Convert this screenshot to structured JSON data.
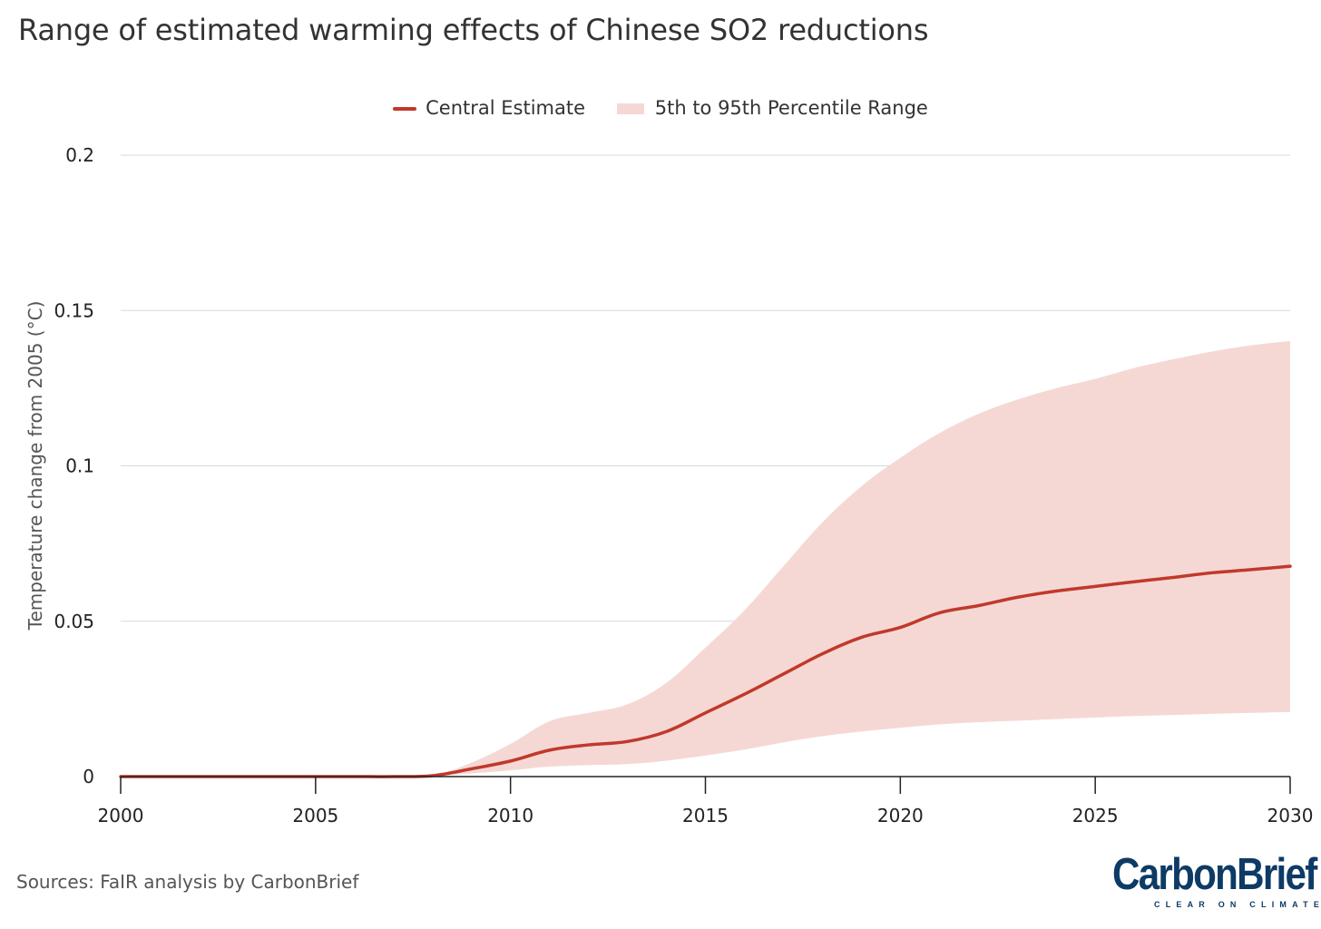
{
  "title": "Range of estimated warming effects of Chinese SO2 reductions",
  "legend": {
    "central": "Central Estimate",
    "range": "5th to 95th Percentile Range"
  },
  "source": "Sources: FaIR analysis by CarbonBrief",
  "logo": {
    "main": "CarbonBrief",
    "tagline": "CLEAR ON CLIMATE"
  },
  "colors": {
    "line": "#c0392b",
    "band": "#f5d8d4",
    "grid": "#d9d9d9",
    "axis": "#222222",
    "logo": "#0d3b66"
  },
  "chart_data": {
    "type": "area",
    "title": "Range of estimated warming effects of Chinese SO2 reductions",
    "xlabel": "",
    "ylabel": "Temperature change from 2005 (°C)",
    "xlim": [
      2000,
      2030
    ],
    "ylim": [
      0,
      0.2
    ],
    "x_ticks": [
      2000,
      2005,
      2010,
      2015,
      2020,
      2025,
      2030
    ],
    "x_tick_labels": [
      "2000",
      "2005",
      "2010",
      "2015",
      "2020",
      "2025",
      "2030"
    ],
    "y_ticks": [
      0,
      0.05,
      0.1,
      0.15,
      0.2
    ],
    "y_tick_labels": [
      "0",
      "0.05",
      "0.1",
      "0.15",
      "0.2"
    ],
    "grid": "horizontal",
    "legend_position": "top-center",
    "x": [
      2000,
      2001,
      2002,
      2003,
      2004,
      2005,
      2006,
      2007,
      2008,
      2009,
      2010,
      2011,
      2012,
      2013,
      2014,
      2015,
      2016,
      2017,
      2018,
      2019,
      2020,
      2021,
      2022,
      2023,
      2024,
      2025,
      2026,
      2027,
      2028,
      2029,
      2030
    ],
    "series": [
      {
        "name": "Central Estimate",
        "type": "line",
        "values": [
          0,
          0,
          0,
          0,
          0,
          0,
          0,
          0,
          0.0003,
          0.0025,
          0.005,
          0.0085,
          0.0102,
          0.0113,
          0.0145,
          0.0205,
          0.0265,
          0.033,
          0.0395,
          0.0448,
          0.048,
          0.0527,
          0.055,
          0.0577,
          0.0597,
          0.0612,
          0.0627,
          0.0641,
          0.0656,
          0.0666,
          0.0677
        ]
      },
      {
        "name": "5th to 95th Percentile Range",
        "type": "band",
        "lower": [
          0,
          0,
          0,
          0,
          0,
          0,
          0,
          0,
          0.0002,
          0.001,
          0.002,
          0.0032,
          0.0037,
          0.004,
          0.0051,
          0.0068,
          0.0087,
          0.011,
          0.013,
          0.0145,
          0.0157,
          0.0168,
          0.0175,
          0.018,
          0.0185,
          0.019,
          0.0195,
          0.0198,
          0.0202,
          0.0205,
          0.0208
        ],
        "upper": [
          0,
          0,
          0,
          0,
          0,
          0,
          0,
          0,
          0.0003,
          0.0045,
          0.0105,
          0.0178,
          0.0205,
          0.0233,
          0.0302,
          0.0415,
          0.0535,
          0.0677,
          0.0818,
          0.0934,
          0.1026,
          0.1105,
          0.1167,
          0.1213,
          0.125,
          0.128,
          0.1315,
          0.1343,
          0.1368,
          0.1388,
          0.1402
        ]
      }
    ]
  }
}
